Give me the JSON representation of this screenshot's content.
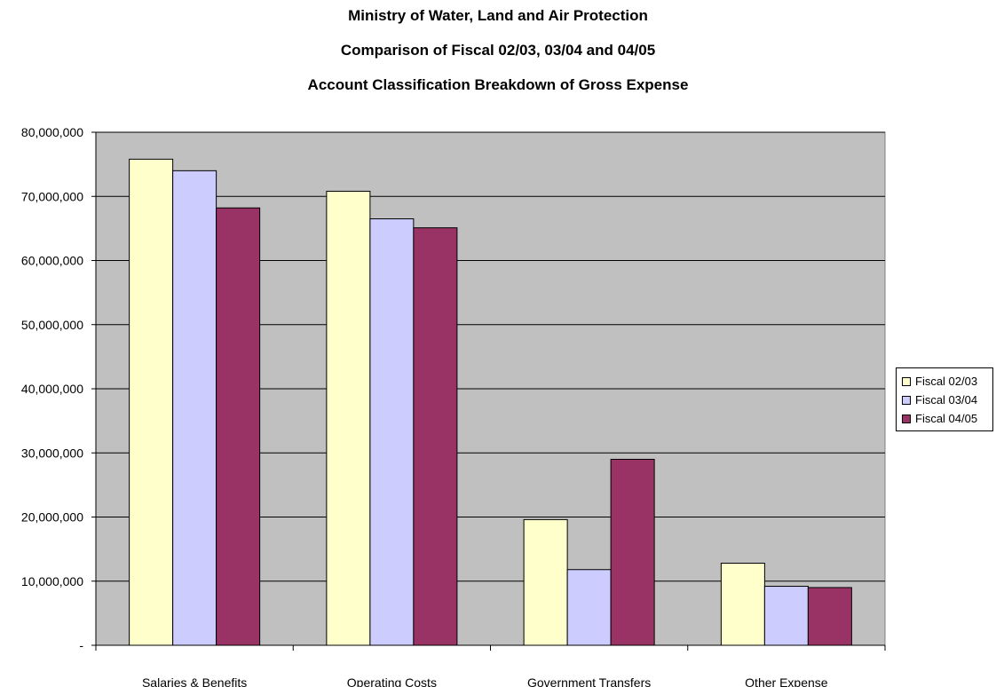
{
  "titles": {
    "line1": "Ministry of Water, Land and Air Protection",
    "line2": "Comparison of Fiscal 02/03, 03/04 and 04/05",
    "line3": "Account Classification Breakdown of Gross Expense"
  },
  "colors": {
    "plot_background": "#c0c0c0",
    "gridline": "#000000"
  },
  "chart_data": {
    "type": "bar",
    "title": "Ministry of Water, Land and Air Protection",
    "subtitle": "Comparison of Fiscal 02/03, 03/04 and 04/05 — Account Classification Breakdown of Gross Expense",
    "categories": [
      "Salaries & Benefits",
      "Operating Costs",
      "Government Transfers",
      "Other Expense"
    ],
    "series": [
      {
        "name": "Fiscal 02/03",
        "color": "#ffffcc",
        "values": [
          75800000,
          70800000,
          19600000,
          12800000
        ]
      },
      {
        "name": "Fiscal 03/04",
        "color": "#ccccff",
        "values": [
          74000000,
          66500000,
          11800000,
          9200000
        ]
      },
      {
        "name": "Fiscal 04/05",
        "color": "#993366",
        "values": [
          68200000,
          65100000,
          29000000,
          9000000
        ]
      }
    ],
    "ylim": [
      0,
      80000000
    ],
    "yticks": [
      {
        "value": 0,
        "label": "-"
      },
      {
        "value": 10000000,
        "label": "10,000,000"
      },
      {
        "value": 20000000,
        "label": "20,000,000"
      },
      {
        "value": 30000000,
        "label": "30,000,000"
      },
      {
        "value": 40000000,
        "label": "40,000,000"
      },
      {
        "value": 50000000,
        "label": "50,000,000"
      },
      {
        "value": 60000000,
        "label": "60,000,000"
      },
      {
        "value": 70000000,
        "label": "70,000,000"
      },
      {
        "value": 80000000,
        "label": "80,000,000"
      }
    ],
    "grid": true,
    "legend_position": "right"
  }
}
